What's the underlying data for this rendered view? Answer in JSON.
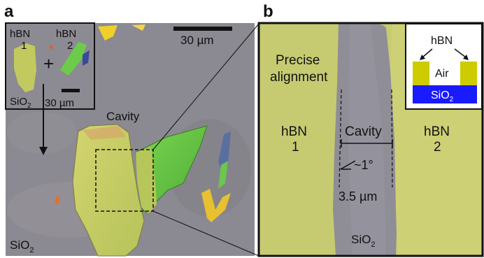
{
  "panel_a": {
    "letter": "a",
    "inset": {
      "hbn1_line1": "hBN",
      "hbn1_line2": "1",
      "plus": "+",
      "hbn2_line1": "hBN",
      "hbn2_line2": "2",
      "sio2_main": "SiO",
      "sio2_sub": "2",
      "scale": "30 µm"
    },
    "scale_bar": "30 µm",
    "cavity": "Cavity",
    "sio2_main": "SiO",
    "sio2_sub": "2"
  },
  "panel_b": {
    "letter": "b",
    "precise_line1": "Precise",
    "precise_line2": "alignment",
    "hbn1_line1": "hBN",
    "hbn1_line2": "1",
    "cavity": "Cavity",
    "hbn2_line1": "hBN",
    "hbn2_line2": "2",
    "angle": "~1°",
    "width": "3.5 µm",
    "sio2_main": "SiO",
    "sio2_sub": "2",
    "schematic": {
      "hbn": "hBN",
      "air": "Air",
      "sio2_main": "SiO",
      "sio2_sub": "2"
    }
  },
  "colors": {
    "substrate_gray": "#8a8790",
    "flake_yellow": "#c9cf6a",
    "flake_green": "#6bc94a",
    "schematic_hbn": "#cccc00",
    "schematic_sio2": "#1a1aff"
  }
}
